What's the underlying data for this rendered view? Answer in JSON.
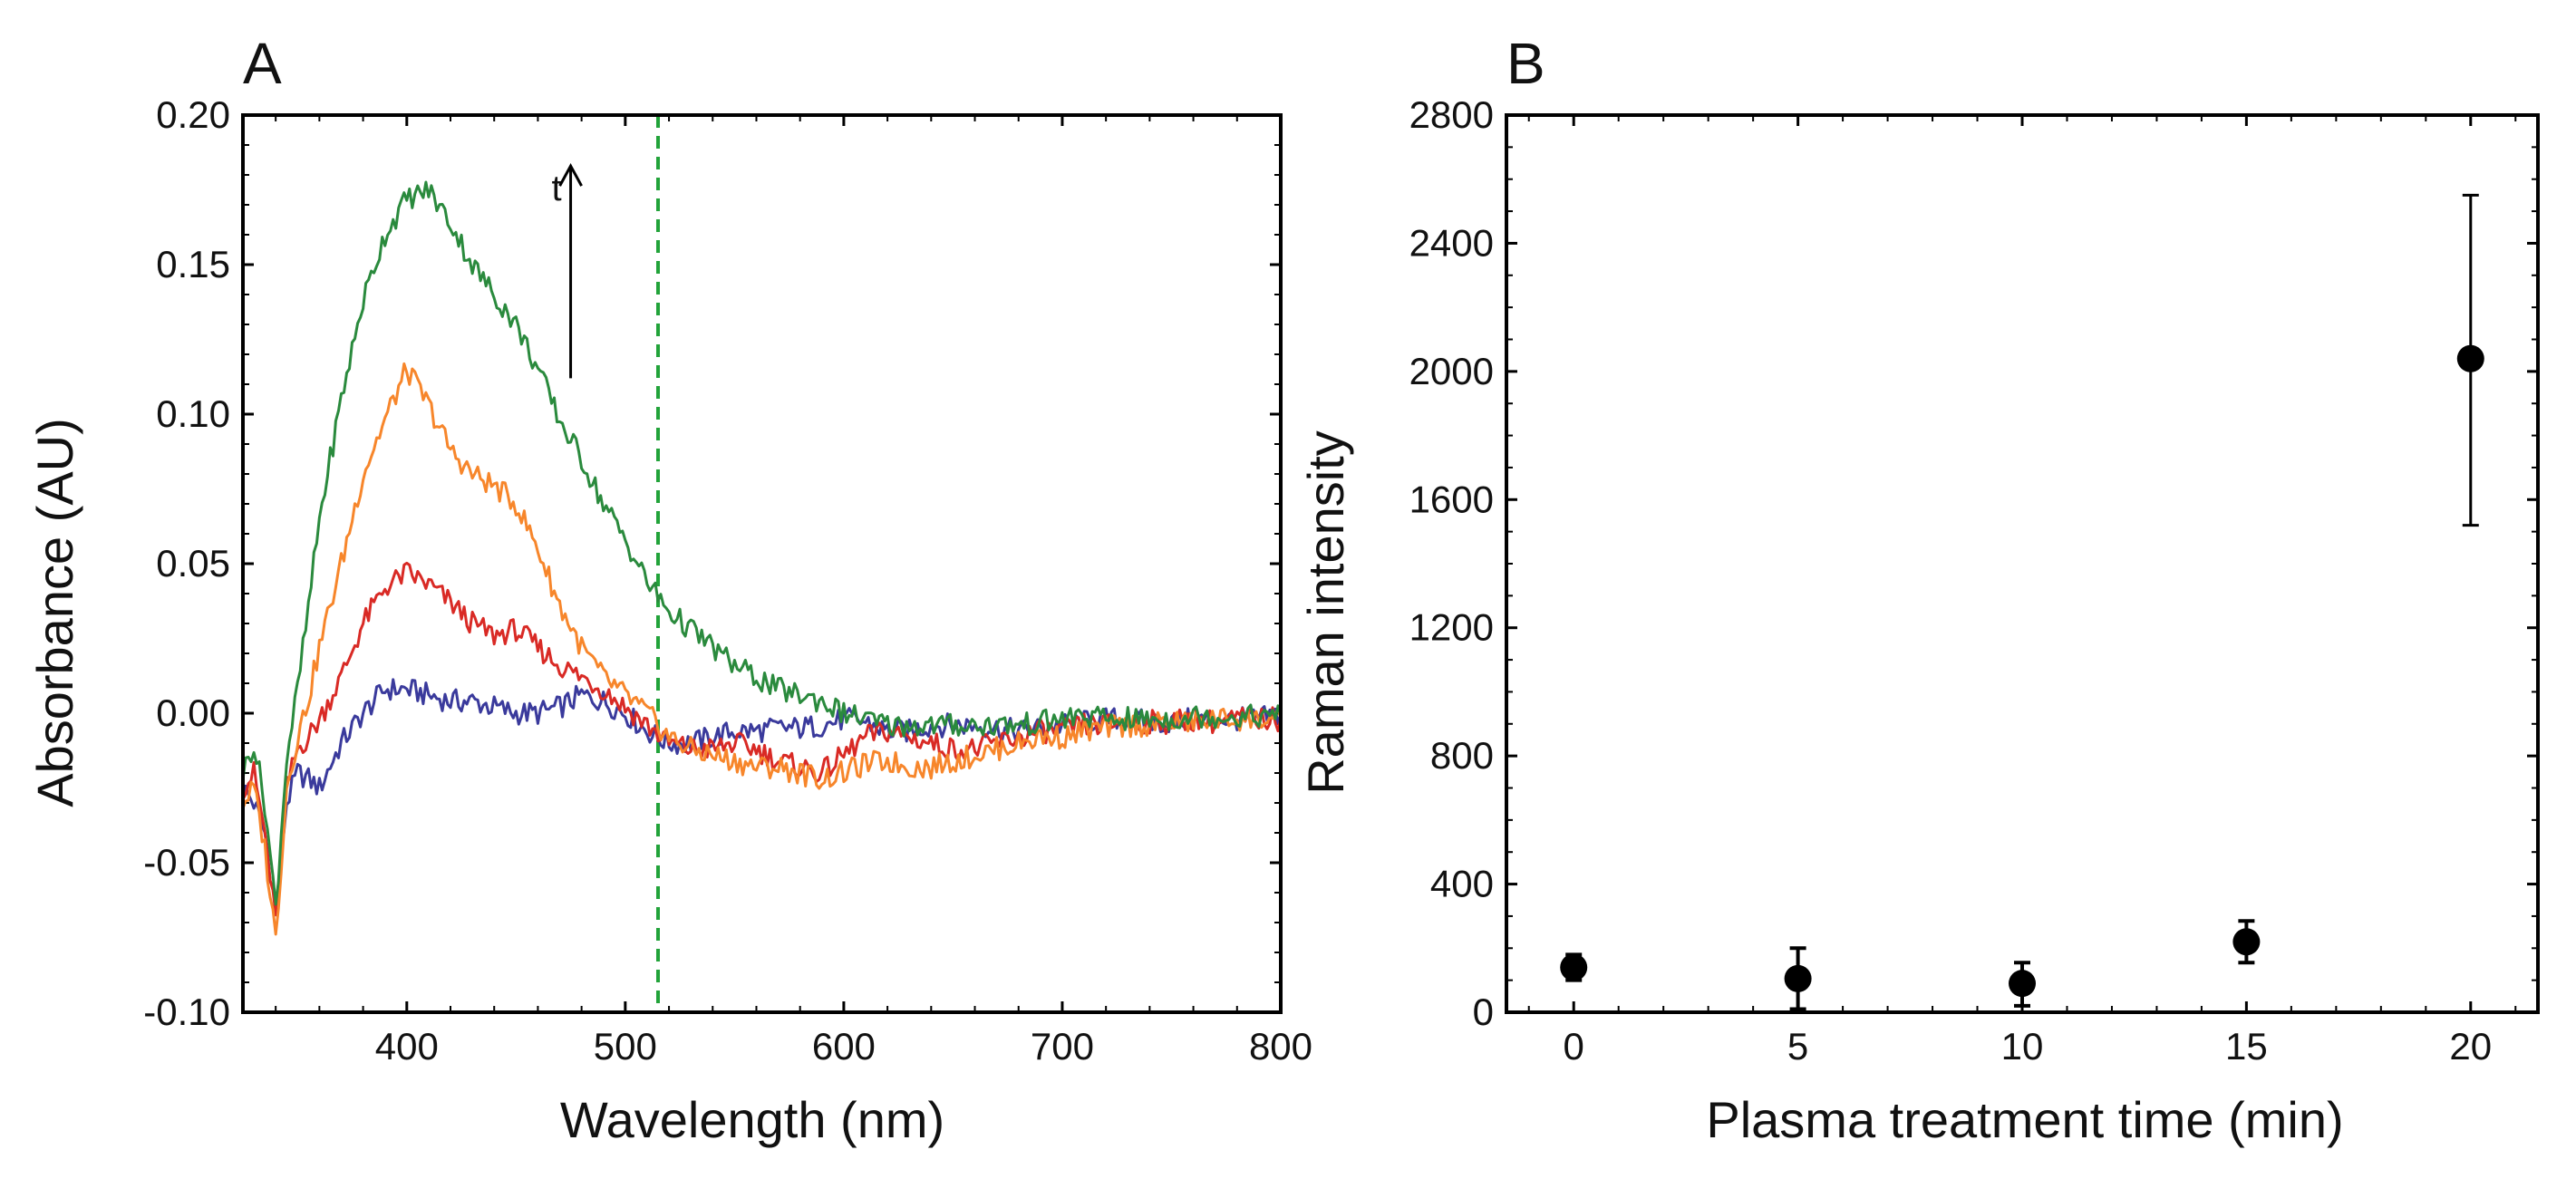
{
  "chart_data": [
    {
      "panel_label": "A",
      "type": "line",
      "xlabel": "Wavelength (nm)",
      "ylabel": "Absorbance (AU)",
      "xlim": [
        325,
        800
      ],
      "ylim": [
        -0.1,
        0.2
      ],
      "x_ticks": [
        400,
        500,
        600,
        700,
        800
      ],
      "y_ticks": [
        -0.1,
        -0.05,
        0.0,
        0.05,
        0.1,
        0.15,
        0.2
      ],
      "y_tick_labels": [
        "-0.10",
        "-0.05",
        "0.00",
        "0.05",
        "0.10",
        "0.15",
        "0.20"
      ],
      "grid": false,
      "annotation": {
        "text": "t",
        "arrow": "up",
        "x": 475,
        "y_from": 0.112,
        "y_to": 0.183
      },
      "reference_line": {
        "x": 515,
        "color": "#22a33a",
        "style": "dashed"
      },
      "x": [
        325,
        330,
        335,
        340,
        345,
        350,
        355,
        360,
        370,
        380,
        390,
        400,
        410,
        420,
        430,
        440,
        450,
        460,
        470,
        480,
        490,
        500,
        510,
        520,
        530,
        540,
        550,
        560,
        570,
        580,
        590,
        600,
        610,
        620,
        630,
        640,
        650,
        660,
        670,
        680,
        690,
        700,
        710,
        720,
        730,
        740,
        750,
        760,
        770,
        780,
        790,
        800
      ],
      "series": [
        {
          "name": "blue",
          "color": "#3a3a9c",
          "values": [
            -0.025,
            -0.03,
            -0.04,
            -0.065,
            -0.03,
            -0.02,
            -0.022,
            -0.025,
            -0.01,
            0.0,
            0.008,
            0.008,
            0.006,
            0.004,
            0.004,
            0.002,
            0.0,
            0.0,
            0.002,
            0.006,
            0.004,
            0.0,
            -0.006,
            -0.01,
            -0.01,
            -0.008,
            -0.006,
            -0.006,
            -0.005,
            -0.005,
            -0.004,
            -0.002,
            -0.003,
            -0.006,
            -0.006,
            -0.004,
            -0.004,
            -0.004,
            -0.005,
            -0.006,
            -0.005,
            -0.004,
            -0.003,
            -0.002,
            -0.002,
            -0.003,
            -0.003,
            -0.002,
            -0.002,
            -0.002,
            -0.002,
            0.0
          ]
        },
        {
          "name": "red",
          "color": "#d92a25",
          "values": [
            -0.025,
            -0.02,
            -0.04,
            -0.07,
            -0.025,
            -0.012,
            -0.008,
            -0.002,
            0.012,
            0.03,
            0.042,
            0.047,
            0.043,
            0.037,
            0.03,
            0.026,
            0.028,
            0.022,
            0.016,
            0.012,
            0.008,
            0.002,
            -0.004,
            -0.01,
            -0.012,
            -0.012,
            -0.01,
            -0.012,
            -0.016,
            -0.018,
            -0.02,
            -0.014,
            -0.008,
            -0.006,
            -0.008,
            -0.01,
            -0.012,
            -0.012,
            -0.01,
            -0.008,
            -0.006,
            -0.006,
            -0.004,
            -0.004,
            -0.003,
            -0.003,
            -0.003,
            -0.002,
            -0.003,
            -0.002,
            -0.002,
            -0.002
          ]
        },
        {
          "name": "orange",
          "color": "#f7862b",
          "values": [
            -0.03,
            -0.025,
            -0.045,
            -0.075,
            -0.025,
            -0.008,
            0.005,
            0.022,
            0.05,
            0.08,
            0.098,
            0.115,
            0.103,
            0.088,
            0.08,
            0.076,
            0.07,
            0.055,
            0.036,
            0.022,
            0.012,
            0.006,
            0.0,
            -0.008,
            -0.012,
            -0.014,
            -0.016,
            -0.018,
            -0.018,
            -0.02,
            -0.022,
            -0.02,
            -0.017,
            -0.016,
            -0.018,
            -0.018,
            -0.016,
            -0.014,
            -0.012,
            -0.01,
            -0.008,
            -0.008,
            -0.006,
            -0.005,
            -0.004,
            -0.004,
            -0.003,
            -0.003,
            -0.002,
            -0.002,
            -0.002,
            -0.002
          ]
        },
        {
          "name": "green",
          "color": "#2a8a3d",
          "values": [
            -0.02,
            -0.01,
            -0.03,
            -0.065,
            -0.015,
            0.008,
            0.035,
            0.065,
            0.105,
            0.138,
            0.16,
            0.172,
            0.175,
            0.164,
            0.15,
            0.14,
            0.13,
            0.115,
            0.098,
            0.085,
            0.07,
            0.058,
            0.044,
            0.034,
            0.028,
            0.022,
            0.016,
            0.012,
            0.008,
            0.006,
            0.004,
            0.0,
            -0.002,
            -0.004,
            -0.004,
            -0.004,
            -0.004,
            -0.004,
            -0.004,
            -0.004,
            -0.003,
            -0.002,
            -0.001,
            -0.002,
            -0.002,
            -0.002,
            -0.002,
            -0.001,
            -0.001,
            -0.001,
            -0.001,
            -0.001
          ]
        }
      ]
    },
    {
      "panel_label": "B",
      "type": "scatter",
      "xlabel": "Plasma treatment time (min)",
      "ylabel": "Raman intensity",
      "xlim": [
        -1.5,
        21.5
      ],
      "ylim": [
        0,
        2800
      ],
      "x_ticks": [
        0,
        5,
        10,
        15,
        20
      ],
      "y_ticks": [
        0,
        400,
        800,
        1200,
        1600,
        2000,
        2400,
        2800
      ],
      "y_tick_labels": [
        "0",
        "400",
        "800",
        "1200",
        "1600",
        "2000",
        "2400",
        "2800"
      ],
      "grid": false,
      "series": [
        {
          "name": "Raman intensity",
          "color": "#000000",
          "points": [
            {
              "x": 0,
              "y": 140,
              "err_low": 100,
              "err_high": 180
            },
            {
              "x": 5,
              "y": 105,
              "err_low": 10,
              "err_high": 200
            },
            {
              "x": 10,
              "y": 90,
              "err_low": 20,
              "err_high": 155
            },
            {
              "x": 15,
              "y": 220,
              "err_low": 155,
              "err_high": 285
            },
            {
              "x": 20,
              "y": 2040,
              "err_low": 1520,
              "err_high": 2550
            }
          ]
        }
      ]
    }
  ]
}
